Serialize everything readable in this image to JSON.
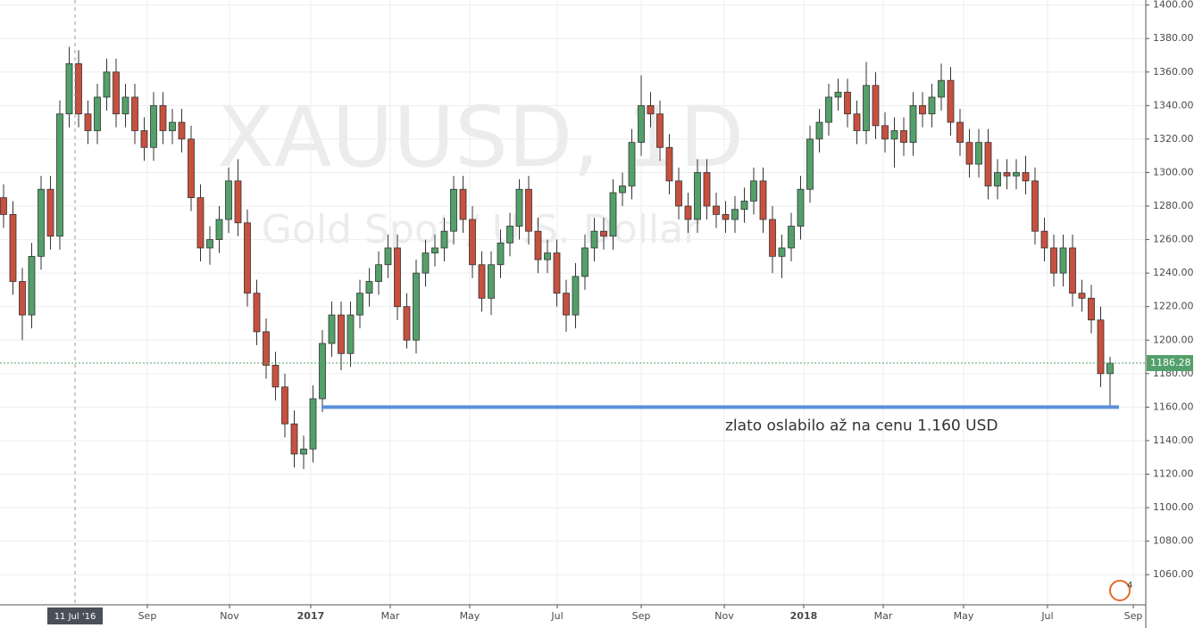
{
  "chart_data": {
    "type": "candlestick",
    "watermark": "XAUUSD, 1D",
    "watermark_subtitle": "Gold Spot / U.S. Dollar",
    "annotation": {
      "text": "zlato oslabilo až na cenu 1.160 USD",
      "value": 1160,
      "color": "#5b8fd9"
    },
    "badge": "4",
    "up_color": "#53a06a",
    "down_color": "#c8503f",
    "grid": true,
    "xlim": [
      -0.38,
      121.81
    ],
    "ylim": [
      1042,
      1403
    ],
    "crosshair": {
      "x": 7.62,
      "label": "11 Jul '16"
    },
    "xticks": [
      {
        "value": 15.33,
        "label": "Sep"
      },
      {
        "value": 24.1,
        "label": "Nov"
      },
      {
        "value": 32.76,
        "label": "2017"
      },
      {
        "value": 41.24,
        "label": "Mar"
      },
      {
        "value": 49.71,
        "label": "May"
      },
      {
        "value": 59.05,
        "label": "Jul"
      },
      {
        "value": 68,
        "label": "Sep"
      },
      {
        "value": 76.86,
        "label": "Nov"
      },
      {
        "value": 85.33,
        "label": "2018"
      },
      {
        "value": 93.81,
        "label": "Mar"
      },
      {
        "value": 102.38,
        "label": "May"
      },
      {
        "value": 111.33,
        "label": "Jul"
      },
      {
        "value": 120.48,
        "label": "Sep"
      }
    ],
    "yticks": [
      {
        "value": 1060,
        "label": "1060.00"
      },
      {
        "value": 1080,
        "label": "1080.00"
      },
      {
        "value": 1100,
        "label": "1100.00"
      },
      {
        "value": 1120,
        "label": "1120.00"
      },
      {
        "value": 1140,
        "label": "1140.00"
      },
      {
        "value": 1160,
        "label": "1160.00"
      },
      {
        "value": 1180,
        "label": "1180.00"
      },
      {
        "value": 1200,
        "label": "1200.00"
      },
      {
        "value": 1220,
        "label": "1220.00"
      },
      {
        "value": 1240,
        "label": "1240.00"
      },
      {
        "value": 1260,
        "label": "1260.00"
      },
      {
        "value": 1280,
        "label": "1280.00"
      },
      {
        "value": 1300,
        "label": "1300.00"
      },
      {
        "value": 1320,
        "label": "1320.00"
      },
      {
        "value": 1340,
        "label": "1340.00"
      },
      {
        "value": 1360,
        "label": "1360.00"
      },
      {
        "value": 1380,
        "label": "1380.00"
      },
      {
        "value": 1400,
        "label": "1400.00"
      }
    ],
    "open": [
      1285,
      1275,
      1235,
      1215,
      1250,
      1290,
      1262,
      1335,
      1365,
      1335,
      1325,
      1345,
      1360,
      1335,
      1345,
      1325,
      1315,
      1340,
      1325,
      1330,
      1320,
      1285,
      1255,
      1260,
      1272,
      1295,
      1270,
      1228,
      1205,
      1185,
      1172,
      1150,
      1132,
      1135,
      1165,
      1198,
      1215,
      1192,
      1215,
      1228,
      1235,
      1245,
      1255,
      1220,
      1200,
      1240,
      1252,
      1255,
      1265,
      1290,
      1272,
      1245,
      1225,
      1245,
      1258,
      1268,
      1290,
      1265,
      1248,
      1252,
      1228,
      1215,
      1238,
      1255,
      1265,
      1262,
      1288,
      1292,
      1318,
      1340,
      1335,
      1315,
      1295,
      1280,
      1272,
      1300,
      1280,
      1275,
      1272,
      1278,
      1283,
      1295,
      1272,
      1250,
      1255,
      1268,
      1290,
      1320,
      1330,
      1345,
      1348,
      1335,
      1325,
      1352,
      1328,
      1320,
      1325,
      1318,
      1340,
      1335,
      1345,
      1355,
      1330,
      1318,
      1305,
      1318,
      1292,
      1300,
      1298,
      1300,
      1295,
      1265,
      1255,
      1240,
      1255,
      1228,
      1225,
      1212,
      1180
    ],
    "high": [
      1293,
      1283,
      1243,
      1258,
      1298,
      1298,
      1343,
      1375,
      1373,
      1343,
      1353,
      1368,
      1368,
      1353,
      1353,
      1333,
      1348,
      1348,
      1338,
      1338,
      1328,
      1293,
      1268,
      1280,
      1303,
      1308,
      1278,
      1236,
      1213,
      1193,
      1180,
      1158,
      1143,
      1173,
      1206,
      1223,
      1223,
      1223,
      1236,
      1243,
      1253,
      1263,
      1263,
      1228,
      1248,
      1260,
      1263,
      1273,
      1298,
      1298,
      1280,
      1253,
      1253,
      1266,
      1276,
      1296,
      1298,
      1273,
      1260,
      1260,
      1236,
      1246,
      1263,
      1273,
      1273,
      1296,
      1300,
      1326,
      1358,
      1348,
      1343,
      1323,
      1303,
      1288,
      1308,
      1308,
      1288,
      1283,
      1286,
      1291,
      1303,
      1303,
      1280,
      1263,
      1276,
      1298,
      1328,
      1338,
      1353,
      1356,
      1356,
      1343,
      1366,
      1360,
      1336,
      1333,
      1333,
      1348,
      1348,
      1353,
      1365,
      1363,
      1338,
      1326,
      1326,
      1326,
      1308,
      1308,
      1308,
      1310,
      1303,
      1273,
      1263,
      1263,
      1263,
      1236,
      1233,
      1220,
      1190
    ],
    "low": [
      1267,
      1227,
      1200,
      1207,
      1242,
      1254,
      1254,
      1327,
      1327,
      1317,
      1317,
      1337,
      1327,
      1327,
      1317,
      1307,
      1307,
      1317,
      1317,
      1312,
      1277,
      1247,
      1245,
      1252,
      1264,
      1262,
      1220,
      1197,
      1177,
      1164,
      1142,
      1124,
      1123,
      1127,
      1157,
      1190,
      1182,
      1184,
      1207,
      1220,
      1227,
      1237,
      1212,
      1195,
      1192,
      1232,
      1244,
      1247,
      1257,
      1264,
      1237,
      1217,
      1215,
      1237,
      1250,
      1260,
      1257,
      1240,
      1240,
      1220,
      1205,
      1207,
      1230,
      1247,
      1254,
      1254,
      1280,
      1284,
      1310,
      1327,
      1307,
      1287,
      1272,
      1264,
      1264,
      1272,
      1267,
      1264,
      1264,
      1270,
      1275,
      1264,
      1240,
      1237,
      1247,
      1260,
      1282,
      1312,
      1322,
      1337,
      1327,
      1317,
      1317,
      1320,
      1312,
      1303,
      1310,
      1310,
      1327,
      1327,
      1337,
      1322,
      1310,
      1297,
      1297,
      1284,
      1284,
      1290,
      1290,
      1287,
      1257,
      1247,
      1232,
      1232,
      1220,
      1217,
      1204,
      1172,
      1160
    ],
    "close": [
      1275,
      1235,
      1215,
      1250,
      1290,
      1262,
      1335,
      1365,
      1335,
      1325,
      1345,
      1360,
      1335,
      1345,
      1325,
      1315,
      1340,
      1325,
      1330,
      1320,
      1285,
      1255,
      1260,
      1272,
      1295,
      1270,
      1228,
      1205,
      1185,
      1172,
      1150,
      1132,
      1135,
      1165,
      1198,
      1215,
      1192,
      1215,
      1228,
      1235,
      1245,
      1255,
      1220,
      1200,
      1240,
      1252,
      1255,
      1265,
      1290,
      1272,
      1245,
      1225,
      1245,
      1258,
      1268,
      1290,
      1265,
      1248,
      1252,
      1228,
      1215,
      1238,
      1255,
      1265,
      1262,
      1288,
      1292,
      1318,
      1340,
      1335,
      1315,
      1295,
      1280,
      1272,
      1300,
      1280,
      1275,
      1272,
      1278,
      1283,
      1295,
      1272,
      1250,
      1255,
      1268,
      1290,
      1320,
      1330,
      1345,
      1348,
      1335,
      1325,
      1352,
      1328,
      1320,
      1325,
      1318,
      1340,
      1335,
      1345,
      1355,
      1330,
      1318,
      1305,
      1318,
      1292,
      1300,
      1298,
      1300,
      1295,
      1265,
      1255,
      1240,
      1255,
      1228,
      1225,
      1212,
      1180,
      1186.28
    ]
  }
}
